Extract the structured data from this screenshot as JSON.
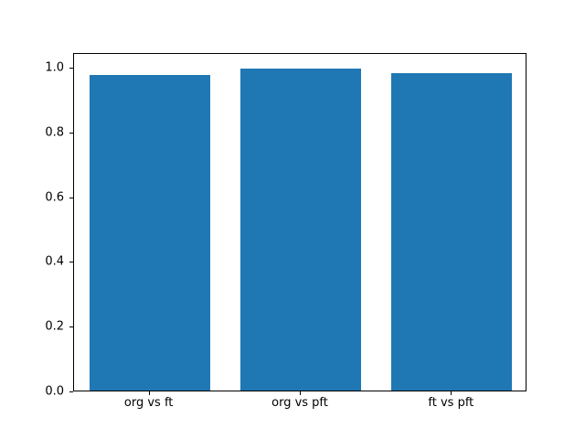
{
  "chart_data": {
    "type": "bar",
    "categories": [
      "org vs ft",
      "org vs pft",
      "ft vs pft"
    ],
    "values": [
      0.975,
      0.995,
      0.98
    ],
    "title": "",
    "xlabel": "",
    "ylabel": "",
    "ylim": [
      0,
      1.045
    ],
    "yticks": [
      0.0,
      0.2,
      0.4,
      0.6,
      0.8,
      1.0
    ],
    "ytick_format_decimals": 1,
    "bar_color": "#1f77b4",
    "bar_width_fraction": 0.8,
    "grid": false,
    "legend_position": "none",
    "background_color": "#ffffff",
    "axis_color": "#000000"
  }
}
